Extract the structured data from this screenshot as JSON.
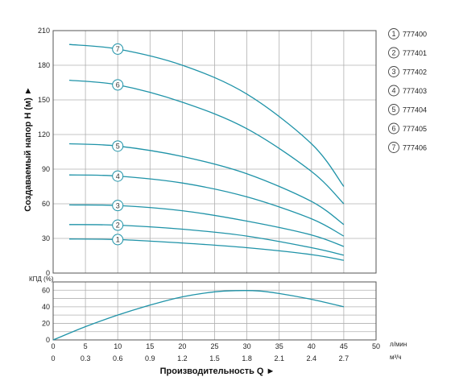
{
  "colors": {
    "curve": "#1f93a8",
    "grid": "#b0b0b0",
    "frame": "#555555",
    "marker_fill": "#ffffff",
    "marker_stroke": "#1f93a8"
  },
  "chart_data": [
    {
      "type": "line",
      "title": "",
      "ylabel": "Создаваемый напор H (м) ►",
      "xlabel": "",
      "xlim": [
        0,
        50
      ],
      "ylim": [
        0,
        210
      ],
      "x_ticks": [
        0,
        5,
        10,
        15,
        20,
        25,
        30,
        35,
        40,
        45,
        50
      ],
      "y_ticks": [
        0,
        30,
        60,
        90,
        120,
        150,
        180,
        210
      ],
      "grid": true,
      "legend_placement": "right",
      "legend_entries": [
        {
          "num": "1",
          "label": "777400"
        },
        {
          "num": "2",
          "label": "777401"
        },
        {
          "num": "3",
          "label": "777402"
        },
        {
          "num": "4",
          "label": "777403"
        },
        {
          "num": "5",
          "label": "777404"
        },
        {
          "num": "6",
          "label": "777405"
        },
        {
          "num": "7",
          "label": "777406"
        }
      ],
      "series": [
        {
          "num": "1",
          "label_x": 10,
          "x": [
            2.5,
            10,
            20,
            30,
            40,
            45
          ],
          "values": [
            29.5,
            29,
            26,
            22,
            16,
            11
          ]
        },
        {
          "num": "2",
          "label_x": 10,
          "x": [
            2.5,
            10,
            20,
            30,
            40,
            45
          ],
          "values": [
            42,
            41.5,
            38,
            32,
            22,
            15.5
          ]
        },
        {
          "num": "3",
          "label_x": 10,
          "x": [
            2.5,
            10,
            20,
            30,
            40,
            45
          ],
          "values": [
            59,
            58.5,
            54,
            45,
            33,
            23
          ]
        },
        {
          "num": "4",
          "label_x": 10,
          "x": [
            2.5,
            10,
            20,
            30,
            40,
            45
          ],
          "values": [
            85,
            84,
            78,
            66,
            47,
            32
          ]
        },
        {
          "num": "5",
          "label_x": 10,
          "x": [
            2.5,
            10,
            20,
            30,
            40,
            45
          ],
          "values": [
            112,
            110,
            101,
            86,
            62,
            42
          ]
        },
        {
          "num": "6",
          "label_x": 10,
          "x": [
            2.5,
            10,
            20,
            30,
            40,
            45
          ],
          "values": [
            167,
            163,
            148,
            125,
            88,
            60
          ]
        },
        {
          "num": "7",
          "label_x": 10,
          "x": [
            2.5,
            10,
            20,
            30,
            40,
            45
          ],
          "values": [
            198,
            194,
            180,
            155,
            112,
            75
          ]
        }
      ]
    },
    {
      "type": "line",
      "title": "",
      "ylabel": "КПД (%)",
      "xlabel": "Производительность Q ►",
      "xlim": [
        0,
        50
      ],
      "ylim": [
        0,
        70
      ],
      "x_ticks": [
        0,
        5,
        10,
        15,
        20,
        25,
        30,
        35,
        40,
        45,
        50
      ],
      "x_unit": "л/мин",
      "x2_ticks": [
        "0",
        "0.3",
        "0.6",
        "0.9",
        "1.2",
        "1.5",
        "1.8",
        "2.1",
        "2.4",
        "2.7"
      ],
      "x2_unit": "м³/ч",
      "y_ticks": [
        0,
        10,
        20,
        30,
        40,
        50,
        60,
        70
      ],
      "y_tick_labels": [
        "0",
        "",
        "20",
        "",
        "40",
        "",
        "60",
        ""
      ],
      "grid": true,
      "series": [
        {
          "x": [
            0,
            5,
            10,
            15,
            20,
            25,
            28.5,
            32,
            35,
            40,
            45
          ],
          "values": [
            0,
            16,
            30,
            42,
            52,
            58,
            59.5,
            59,
            56,
            49,
            40
          ]
        }
      ]
    }
  ]
}
